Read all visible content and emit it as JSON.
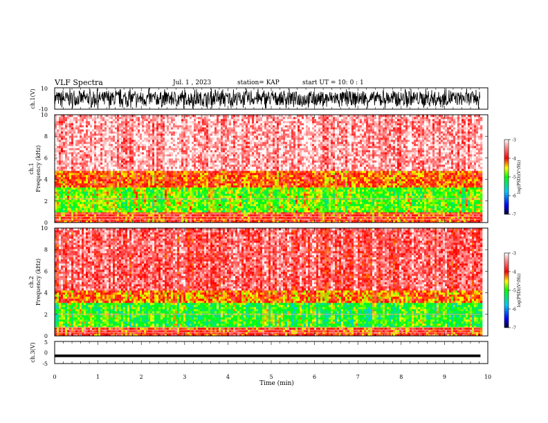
{
  "header": {
    "title": "VLF Spectra",
    "date": "Jul. 1 , 2023",
    "station": "station= KAP",
    "start": "start UT = 10: 0 : 1"
  },
  "chart_data": [
    {
      "type": "line",
      "name": "ch1-waveform",
      "ylabel": "ch.1(V)",
      "ylim": [
        -10,
        10
      ],
      "yticks": [
        "10",
        "-10"
      ],
      "x_range_min": [
        0,
        9.83
      ],
      "trace_level": "dense broadband noise spanning nearly the full ±10 V range"
    },
    {
      "type": "heatmap",
      "name": "ch1-spectrogram",
      "ylabel": "ch.1\nFrequency (kHz)",
      "ylabel_lines": [
        "ch.1",
        "Frequency (kHz)"
      ],
      "ylim": [
        0,
        10
      ],
      "yticks": [
        "0",
        "2",
        "4",
        "6",
        "8",
        "10"
      ],
      "x_range_min": [
        0,
        9.83
      ],
      "bands_khz": [
        {
          "from": 0.0,
          "to": 1.0,
          "level": -4.0
        },
        {
          "from": 1.0,
          "to": 3.2,
          "level": -4.8
        },
        {
          "from": 3.2,
          "to": 4.8,
          "level": -4.1
        },
        {
          "from": 4.8,
          "to": 10.0,
          "level": -3.3
        }
      ],
      "lines_khz": [
        0.3,
        0.55,
        0.8,
        2.2
      ],
      "colorbar": {
        "label": "log(PSD)(V²/Hz)",
        "range": [
          -7,
          -3
        ],
        "ticks": [
          "-3",
          "-4",
          "-5",
          "-6",
          "-7"
        ]
      }
    },
    {
      "type": "heatmap",
      "name": "ch2-spectrogram",
      "ylabel": "ch.2\nFrequency (kHz)",
      "ylabel_lines": [
        "ch.2",
        "Frequency (kHz)"
      ],
      "ylim": [
        0,
        10
      ],
      "yticks": [
        "0",
        "2",
        "4",
        "6",
        "8",
        "10"
      ],
      "x_range_min": [
        0,
        9.83
      ],
      "bands_khz": [
        {
          "from": 0.0,
          "to": 0.8,
          "level": -4.0
        },
        {
          "from": 0.8,
          "to": 3.0,
          "level": -5.0
        },
        {
          "from": 3.0,
          "to": 4.2,
          "level": -4.2
        },
        {
          "from": 4.2,
          "to": 10.0,
          "level": -3.6
        }
      ],
      "lines_khz": [
        0.3,
        0.55,
        0.8,
        2.0
      ],
      "colorbar": {
        "label": "log(PSD)(V²/Hz)",
        "range": [
          -7,
          -3
        ],
        "ticks": [
          "-3",
          "-4",
          "-5",
          "-6",
          "-7"
        ]
      }
    },
    {
      "type": "line",
      "name": "ch3-waveform",
      "ylabel": "ch.3(V)",
      "ylim": [
        -5,
        5
      ],
      "yticks": [
        "5",
        "0",
        "-5"
      ],
      "x_range_min": [
        0,
        9.83
      ],
      "trace_level": "thin band around -1.5 V"
    }
  ],
  "xaxis": {
    "label": "Time (min)",
    "range": [
      0,
      10
    ],
    "ticks": [
      "0",
      "1",
      "2",
      "3",
      "4",
      "5",
      "6",
      "7",
      "8",
      "9",
      "10"
    ]
  }
}
